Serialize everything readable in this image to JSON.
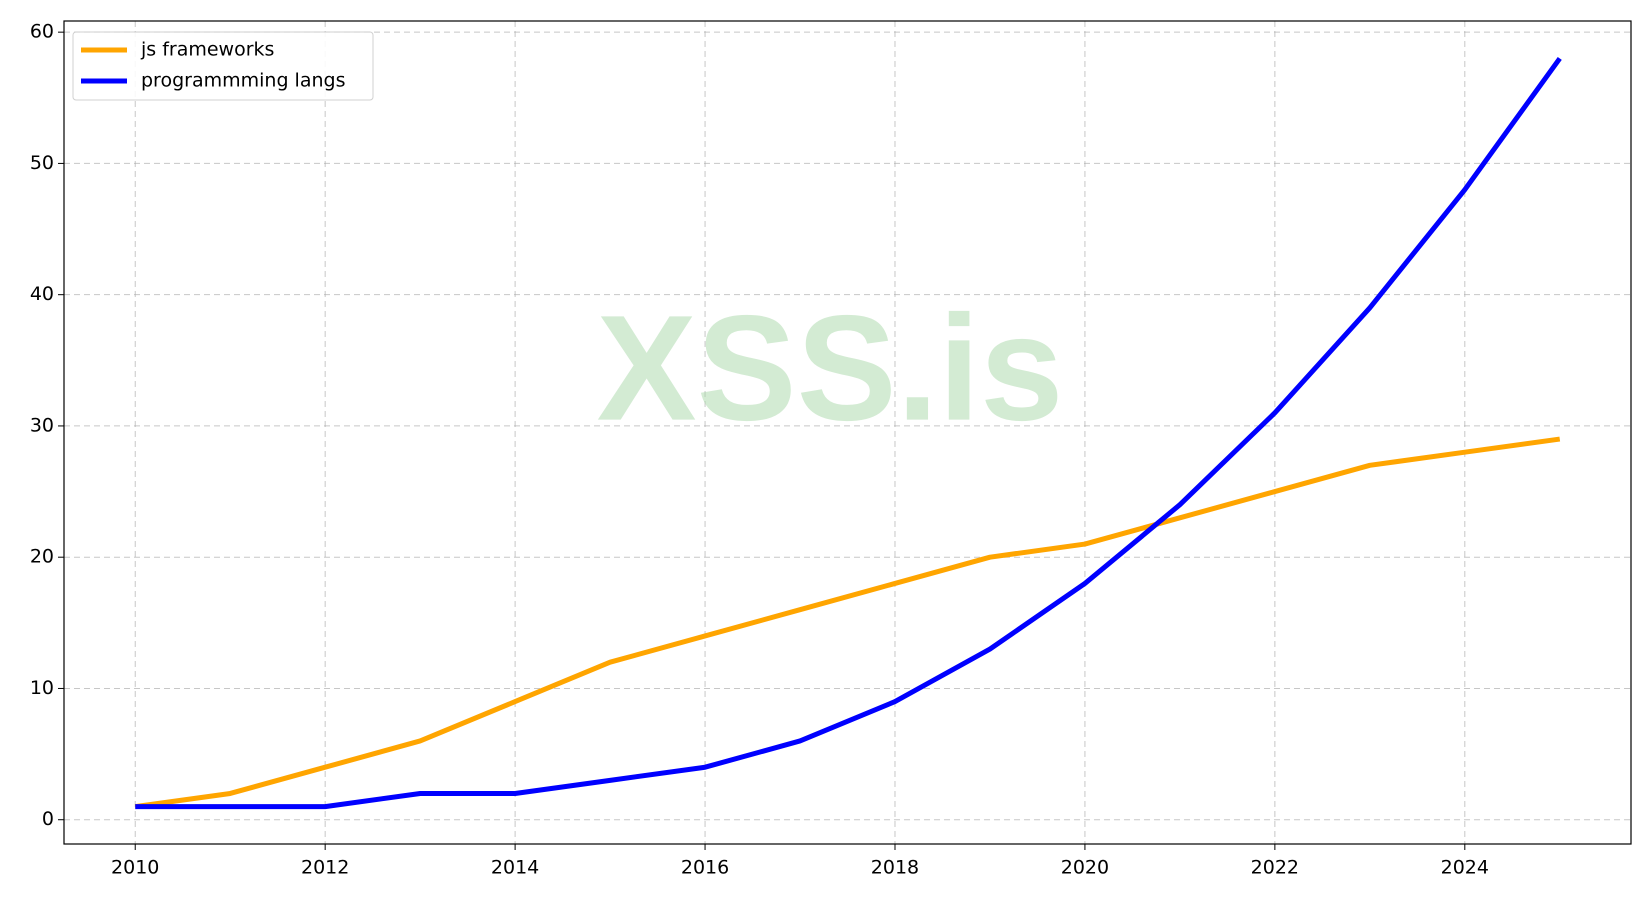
{
  "chart_data": {
    "type": "line",
    "watermark": "XSS.is",
    "x": [
      2010,
      2011,
      2012,
      2013,
      2014,
      2015,
      2016,
      2017,
      2018,
      2019,
      2020,
      2021,
      2022,
      2023,
      2024,
      2025
    ],
    "series": [
      {
        "name": "js frameworks",
        "color": "#ffa500",
        "values": [
          1,
          2,
          4,
          6,
          9,
          12,
          14,
          16,
          18,
          20,
          21,
          23,
          25,
          27,
          28,
          29
        ]
      },
      {
        "name": "programmming langs",
        "color": "#0000ff",
        "values": [
          1,
          1,
          1,
          2,
          2,
          3,
          4,
          6,
          9,
          13,
          18,
          24,
          31,
          39,
          48,
          58
        ]
      }
    ],
    "xlim": [
      2009.25,
      2025.75
    ],
    "xticks": [
      2010,
      2012,
      2014,
      2016,
      2018,
      2020,
      2022,
      2024
    ],
    "ylim": [
      -1.85,
      60.85
    ],
    "yticks": [
      0,
      10,
      20,
      30,
      40,
      50,
      60
    ],
    "grid": true,
    "legend": "upper-left"
  }
}
